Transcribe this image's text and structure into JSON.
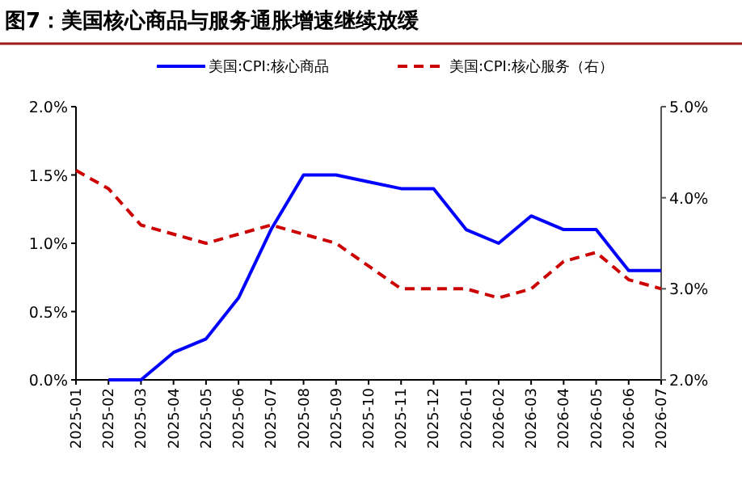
{
  "chart_data": {
    "type": "line",
    "title": "图7：美国核心商品与服务通胀增速继续放缓",
    "categories": [
      "2025-01",
      "2025-02",
      "2025-03",
      "2025-04",
      "2025-05",
      "2025-06",
      "2025-07",
      "2025-08",
      "2025-09",
      "2025-10",
      "2025-11",
      "2025-12",
      "2026-01",
      "2026-02",
      "2026-03",
      "2026-04",
      "2026-05",
      "2026-06",
      "2026-07"
    ],
    "series": [
      {
        "name": "美国:CPI:核心商品",
        "color": "#0000ff",
        "line_style": "solid",
        "values": [
          null,
          0,
          0,
          0.2,
          0.3,
          0.6,
          1.1,
          1.5,
          1.5,
          1.45,
          1.4,
          1.4,
          1.1,
          1.0,
          1.2,
          1.1,
          1.1,
          0.8,
          0.8
        ]
      },
      {
        "name": "美国:CPI:核心服务（右）",
        "color": "#cc0000",
        "line_style": "dashed",
        "axis": "y2",
        "values": [
          4.3,
          4.1,
          3.7,
          3.6,
          3.5,
          3.6,
          3.7,
          3.6,
          3.5,
          3.25,
          3.0,
          3.0,
          3.0,
          2.9,
          3.0,
          3.3,
          3.4,
          3.1,
          3.0
        ]
      }
    ],
    "ylim": [
      0,
      2
    ],
    "yticks": [
      {
        "value": 0,
        "label": "0.0%"
      },
      {
        "value": 0.5,
        "label": "0.5%"
      },
      {
        "value": 1,
        "label": "1.0%"
      },
      {
        "value": 1.5,
        "label": "1.5%"
      },
      {
        "value": 2,
        "label": "2.0%"
      }
    ],
    "y2lim": [
      2,
      5
    ],
    "y2ticks": [
      {
        "value": 2,
        "label": "2.0%"
      },
      {
        "value": 3,
        "label": "3.0%"
      },
      {
        "value": 4,
        "label": "4.0%"
      },
      {
        "value": 5,
        "label": "5.0%"
      }
    ],
    "legend": "top"
  }
}
